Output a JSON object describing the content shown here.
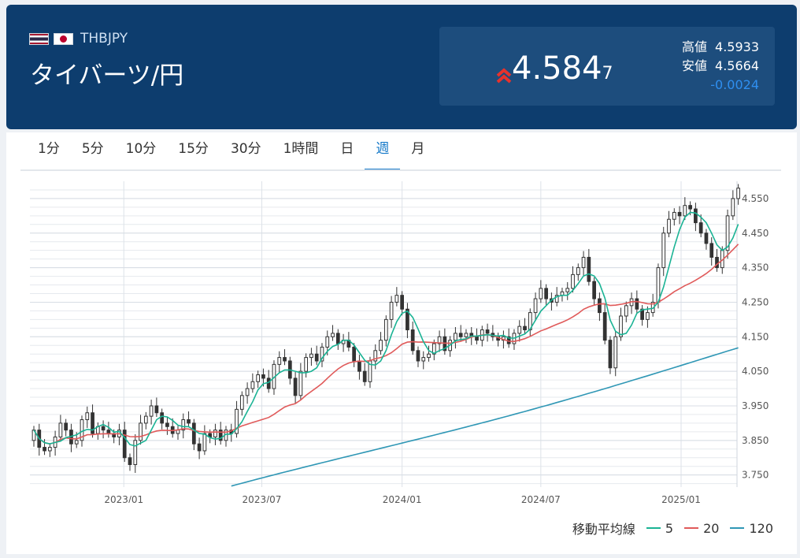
{
  "header": {
    "symbol": "THBJPY",
    "name": "タイバーツ/円",
    "price_main": "4.584",
    "price_sub": "7",
    "high_label": "高値",
    "high_value": "4.5933",
    "low_label": "安値",
    "low_value": "4.5664",
    "change": "-0.0024",
    "flags": [
      "thailand-flag",
      "japan-flag"
    ],
    "up_arrow_color": "#e8322c"
  },
  "tabs": [
    "1分",
    "5分",
    "10分",
    "15分",
    "30分",
    "1時間",
    "日",
    "週",
    "月"
  ],
  "active_tab": "週",
  "legend": {
    "title": "移動平均線",
    "items": [
      {
        "label": "5",
        "color": "#1ab394"
      },
      {
        "label": "20",
        "color": "#e05a5a"
      },
      {
        "label": "120",
        "color": "#2f97b5"
      }
    ]
  },
  "chart_data": {
    "type": "candlestick",
    "x_ticks": [
      "2023/01",
      "2023/07",
      "2024/01",
      "2024/07",
      "2025/01"
    ],
    "y_ticks": [
      "4.550",
      "4.450",
      "4.350",
      "4.250",
      "4.150",
      "4.050",
      "3.950",
      "3.850",
      "3.750"
    ],
    "ylim": [
      3.715,
      4.6
    ],
    "x_start": "2022-09-05",
    "interval": "weekly",
    "up_color": "#ffffff",
    "down_color": "#333333",
    "close": [
      3.88,
      3.83,
      3.82,
      3.83,
      3.86,
      3.9,
      3.88,
      3.84,
      3.85,
      3.91,
      3.93,
      3.87,
      3.89,
      3.88,
      3.87,
      3.86,
      3.88,
      3.8,
      3.78,
      3.85,
      3.9,
      3.92,
      3.95,
      3.93,
      3.9,
      3.89,
      3.87,
      3.88,
      3.91,
      3.9,
      3.84,
      3.82,
      3.87,
      3.86,
      3.88,
      3.85,
      3.88,
      3.87,
      3.94,
      3.98,
      4.0,
      4.02,
      4.04,
      4.03,
      4.0,
      4.07,
      4.09,
      4.08,
      4.03,
      3.98,
      4.05,
      4.09,
      4.1,
      4.08,
      4.12,
      4.15,
      4.16,
      4.13,
      4.14,
      4.12,
      4.08,
      4.05,
      4.02,
      4.08,
      4.11,
      4.14,
      4.2,
      4.25,
      4.27,
      4.23,
      4.17,
      4.11,
      4.08,
      4.09,
      4.1,
      4.13,
      4.15,
      4.11,
      4.14,
      4.16,
      4.15,
      4.16,
      4.15,
      4.14,
      4.17,
      4.16,
      4.15,
      4.14,
      4.15,
      4.13,
      4.16,
      4.18,
      4.17,
      4.22,
      4.26,
      4.29,
      4.26,
      4.25,
      4.27,
      4.28,
      4.29,
      4.33,
      4.35,
      4.38,
      4.31,
      4.26,
      4.22,
      4.14,
      4.06,
      4.15,
      4.21,
      4.24,
      4.26,
      4.23,
      4.2,
      4.22,
      4.25,
      4.35,
      4.45,
      4.49,
      4.51,
      4.5,
      4.53,
      4.52,
      4.48,
      4.45,
      4.42,
      4.38,
      4.35,
      4.4,
      4.5,
      4.55,
      4.58
    ]
  }
}
